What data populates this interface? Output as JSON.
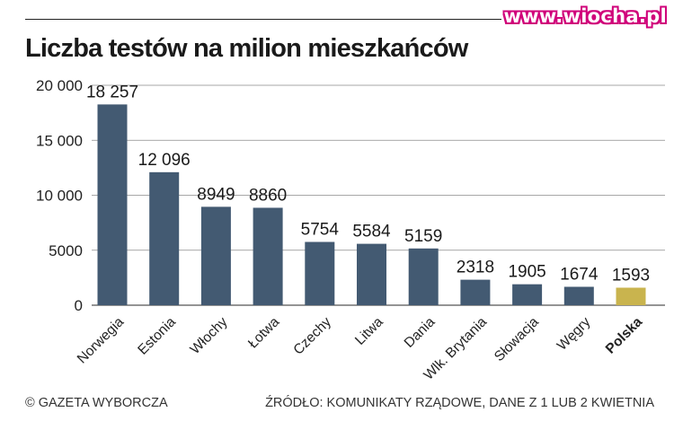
{
  "watermark": "www.wiocha.pl",
  "footer": {
    "credit": "© GAZETA WYBORCZA",
    "source": "ŹRÓDŁO: KOMUNIKATY RZĄDOWE, DANE Z 1 LUB 2 KWIETNIA"
  },
  "colors": {
    "bar": "#435a72",
    "highlight": "#c9b44e",
    "gridline": "#8a8a8a"
  },
  "chart_data": {
    "type": "bar",
    "title": "Liczba testów na milion mieszkańców",
    "xlabel": "",
    "ylabel": "",
    "ylim": [
      0,
      20000
    ],
    "yticks": [
      0,
      5000,
      10000,
      15000,
      20000
    ],
    "ytick_labels": [
      "0",
      "5000",
      "10 000",
      "15 000",
      "20 000"
    ],
    "grid": true,
    "legend": "none",
    "categories": [
      "Norwegia",
      "Estonia",
      "Włochy",
      "Łotwa",
      "Czechy",
      "Litwa",
      "Dania",
      "Wlk. Brytania",
      "Słowacja",
      "Węgry",
      "Polska"
    ],
    "values": [
      18257,
      12096,
      8949,
      8860,
      5754,
      5584,
      5159,
      2318,
      1905,
      1674,
      1593
    ],
    "value_labels": [
      "18 257",
      "12 096",
      "8949",
      "8860",
      "5754",
      "5584",
      "5159",
      "2318",
      "1905",
      "1674",
      "1593"
    ],
    "highlight_category": "Polska"
  }
}
